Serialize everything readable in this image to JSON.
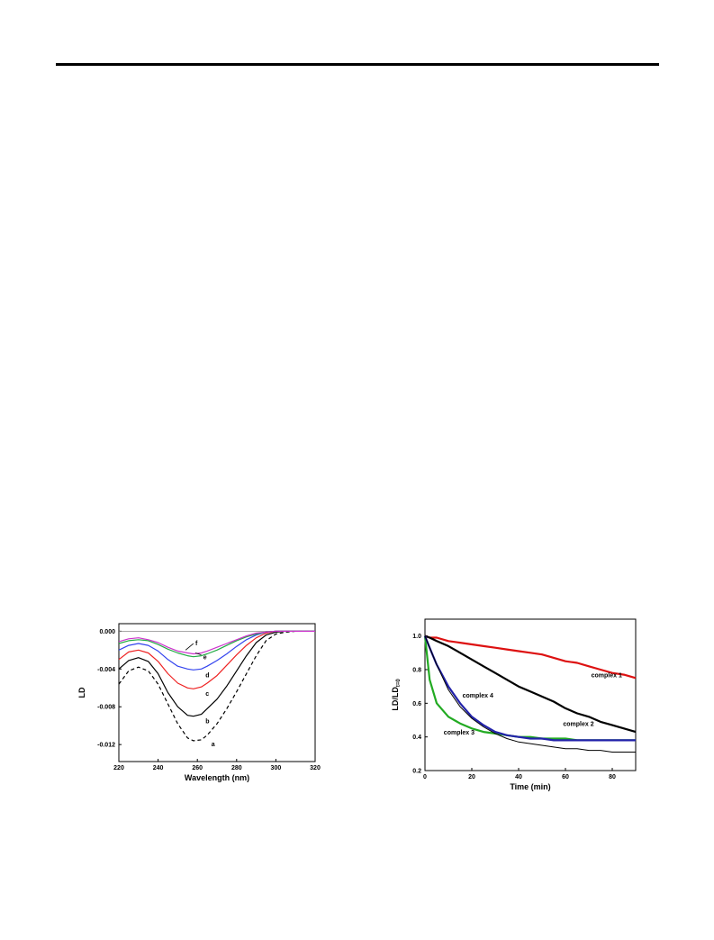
{
  "chart_data": [
    {
      "type": "line",
      "xlabel": "Wavelength (nm)",
      "ylabel": "LD",
      "xlim": [
        220,
        320
      ],
      "ylim": [
        -0.0138,
        0.0008
      ],
      "xticks": [
        "220",
        "240",
        "260",
        "280",
        "300",
        "320"
      ],
      "yticks": [
        "0.000",
        "-0.004",
        "-0.008",
        "-0.012"
      ],
      "x": [
        220,
        225,
        230,
        235,
        240,
        245,
        250,
        255,
        258,
        262,
        265,
        270,
        275,
        280,
        285,
        290,
        295,
        300,
        305,
        310,
        315,
        320
      ],
      "series": [
        {
          "name": "a",
          "color": "#000000",
          "dash": true,
          "values": [
            -0.0056,
            -0.0042,
            -0.0038,
            -0.0042,
            -0.0056,
            -0.0077,
            -0.0098,
            -0.0113,
            -0.0116,
            -0.0115,
            -0.011,
            -0.0098,
            -0.0082,
            -0.0064,
            -0.0045,
            -0.0026,
            -0.001,
            -0.0003,
            -0.0001,
            0,
            0,
            0
          ]
        },
        {
          "name": "b",
          "color": "#000000",
          "values": [
            -0.004,
            -0.0031,
            -0.0028,
            -0.0032,
            -0.0045,
            -0.0065,
            -0.008,
            -0.0089,
            -0.009,
            -0.0088,
            -0.0082,
            -0.0072,
            -0.0058,
            -0.0042,
            -0.0026,
            -0.0012,
            -0.0004,
            -0.0001,
            0,
            0,
            0,
            0
          ]
        },
        {
          "name": "c",
          "color": "#ee2222",
          "values": [
            -0.003,
            -0.0022,
            -0.002,
            -0.0023,
            -0.0032,
            -0.0045,
            -0.0055,
            -0.006,
            -0.0061,
            -0.0059,
            -0.0055,
            -0.0047,
            -0.0036,
            -0.0025,
            -0.0015,
            -0.0007,
            -0.0002,
            0,
            0,
            0,
            0,
            0
          ]
        },
        {
          "name": "d",
          "color": "#3344ee",
          "values": [
            -0.002,
            -0.0015,
            -0.0013,
            -0.0015,
            -0.0021,
            -0.003,
            -0.0037,
            -0.004,
            -0.0041,
            -0.004,
            -0.0037,
            -0.0031,
            -0.0024,
            -0.0016,
            -0.0009,
            -0.0004,
            -0.0001,
            0,
            0,
            0,
            0,
            0
          ]
        },
        {
          "name": "e",
          "color": "#22aa44",
          "values": [
            -0.0013,
            -0.001,
            -0.0009,
            -0.001,
            -0.0014,
            -0.0019,
            -0.0023,
            -0.0026,
            -0.0027,
            -0.0026,
            -0.0024,
            -0.002,
            -0.0015,
            -0.001,
            -0.0006,
            -0.0003,
            -0.0001,
            0,
            0,
            0,
            0,
            0
          ]
        },
        {
          "name": "f",
          "color": "#cc33cc",
          "values": [
            -0.0011,
            -0.0008,
            -0.0007,
            -0.0009,
            -0.0012,
            -0.0017,
            -0.0021,
            -0.0023,
            -0.0024,
            -0.0023,
            -0.0021,
            -0.0017,
            -0.0013,
            -0.0009,
            -0.0005,
            -0.0002,
            -0.0001,
            0,
            0,
            0,
            0,
            0
          ]
        }
      ]
    },
    {
      "type": "line",
      "xlabel": "Time (min)",
      "ylabel": "LD/LD",
      "ylabel_sub": "t=0",
      "xlim": [
        0,
        90
      ],
      "ylim": [
        0.2,
        1.1
      ],
      "xticks": [
        "0",
        "20",
        "40",
        "60",
        "80"
      ],
      "yticks": [
        "0.2",
        "0.4",
        "0.6",
        "0.8",
        "1.0"
      ],
      "x": [
        0,
        2,
        5,
        10,
        15,
        20,
        25,
        30,
        35,
        40,
        45,
        50,
        55,
        60,
        65,
        70,
        75,
        80,
        85,
        90
      ],
      "series": [
        {
          "name": "complex 1",
          "color": "#dd1111",
          "values": [
            1.0,
            0.99,
            0.99,
            0.97,
            0.96,
            0.95,
            0.94,
            0.93,
            0.92,
            0.91,
            0.9,
            0.89,
            0.87,
            0.85,
            0.84,
            0.82,
            0.8,
            0.78,
            0.77,
            0.75
          ]
        },
        {
          "name": "complex 2",
          "color": "#000000",
          "values": [
            1.0,
            0.99,
            0.97,
            0.94,
            0.9,
            0.86,
            0.82,
            0.78,
            0.74,
            0.7,
            0.67,
            0.64,
            0.61,
            0.57,
            0.54,
            0.52,
            0.49,
            0.47,
            0.45,
            0.43
          ]
        },
        {
          "name": "complex 3",
          "color": "#22aa22",
          "values": [
            1.0,
            0.74,
            0.6,
            0.52,
            0.48,
            0.45,
            0.43,
            0.42,
            0.41,
            0.4,
            0.4,
            0.39,
            0.39,
            0.39,
            0.38,
            0.38,
            0.38,
            0.38,
            0.38,
            0.38
          ]
        },
        {
          "name": "complex 4",
          "color": "#2222aa",
          "values": [
            1.0,
            0.93,
            0.83,
            0.7,
            0.6,
            0.52,
            0.47,
            0.43,
            0.41,
            0.4,
            0.39,
            0.39,
            0.38,
            0.38,
            0.38,
            0.38,
            0.38,
            0.38,
            0.38,
            0.38
          ]
        },
        {
          "name": "",
          "color": "#000000",
          "fit": true,
          "values": [
            1.0,
            0.93,
            0.83,
            0.68,
            0.58,
            0.51,
            0.46,
            0.42,
            0.39,
            0.37,
            0.36,
            0.35,
            0.34,
            0.33,
            0.33,
            0.32,
            0.32,
            0.31,
            0.31,
            0.31
          ]
        }
      ]
    }
  ]
}
